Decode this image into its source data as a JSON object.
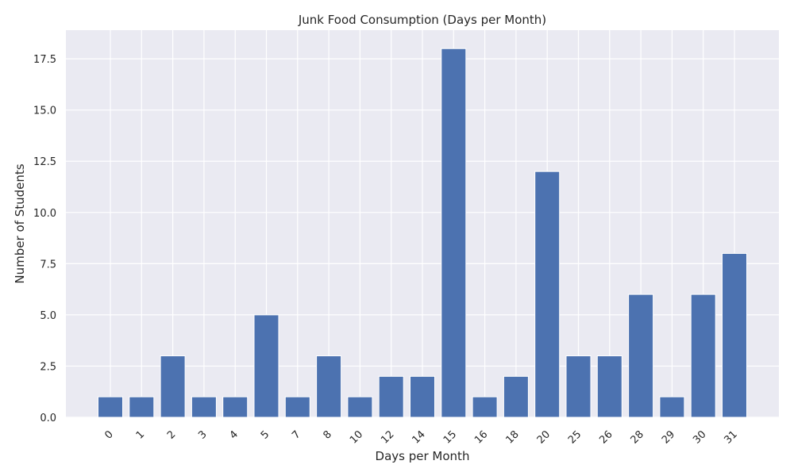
{
  "chart_data": {
    "type": "bar",
    "title": "Junk Food Consumption (Days per Month)",
    "xlabel": "Days per Month",
    "ylabel": "Number of Students",
    "categories": [
      "0",
      "1",
      "2",
      "3",
      "4",
      "5",
      "7",
      "8",
      "10",
      "12",
      "14",
      "15",
      "16",
      "18",
      "20",
      "25",
      "26",
      "28",
      "29",
      "30",
      "31"
    ],
    "values": [
      1,
      1,
      3,
      1,
      1,
      5,
      1,
      3,
      1,
      2,
      2,
      18,
      1,
      2,
      12,
      3,
      3,
      6,
      1,
      6,
      8
    ],
    "ylim": [
      0,
      18.9
    ],
    "yticks": [
      "0.0",
      "2.5",
      "5.0",
      "7.5",
      "10.0",
      "12.5",
      "15.0",
      "17.5"
    ],
    "grid": true,
    "colors": {
      "bar": "#4c72b0",
      "plot_background": "#eaeaf2",
      "grid": "#ffffff",
      "text": "#262626"
    }
  }
}
